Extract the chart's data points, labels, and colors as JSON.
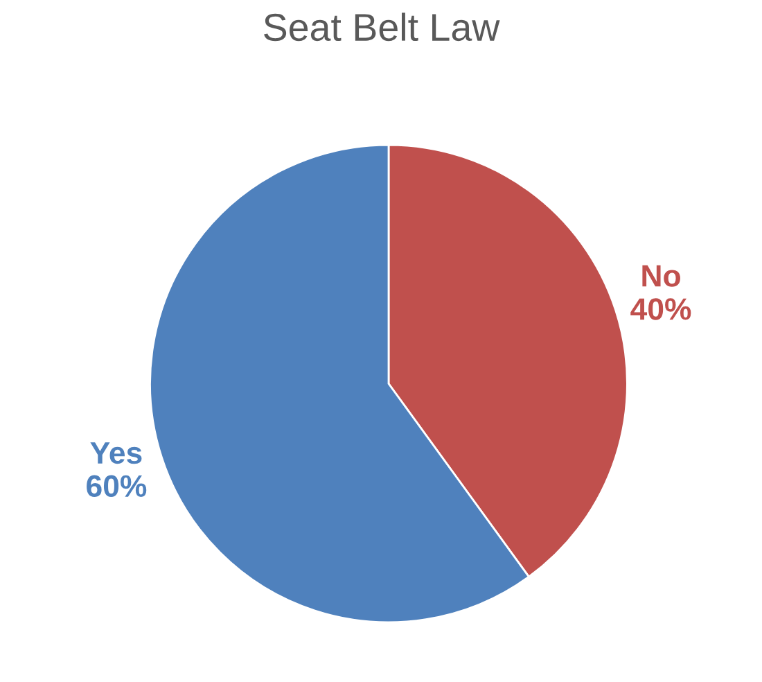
{
  "chart_data": {
    "type": "pie",
    "title": "Seat Belt Law",
    "categories": [
      "No",
      "Yes"
    ],
    "values": [
      40,
      60
    ],
    "colors": [
      "#c0504d",
      "#4f81bd"
    ],
    "value_labels": [
      "40%",
      "60%"
    ]
  }
}
